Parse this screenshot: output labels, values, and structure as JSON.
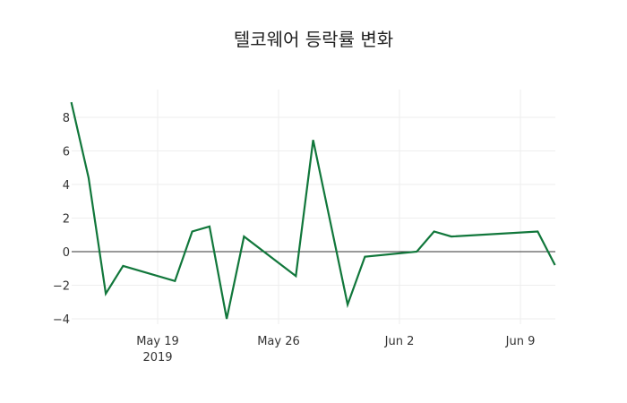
{
  "title": "텔코웨어 등락률 변화",
  "colors": {
    "line": "#11773b",
    "zeroline": "#333333",
    "grid": "#eeeeee"
  },
  "chart_data": {
    "type": "line",
    "title": "텔코웨어 등락률 변화",
    "xlabel": "",
    "ylabel": "",
    "x": [
      "2019-05-14",
      "2019-05-15",
      "2019-05-16",
      "2019-05-17",
      "2019-05-20",
      "2019-05-21",
      "2019-05-22",
      "2019-05-23",
      "2019-05-24",
      "2019-05-27",
      "2019-05-28",
      "2019-05-30",
      "2019-05-31",
      "2019-06-03",
      "2019-06-04",
      "2019-06-05",
      "2019-06-10",
      "2019-06-11"
    ],
    "series": [
      {
        "name": "등락률",
        "values": [
          8.9,
          4.4,
          -2.5,
          -0.85,
          -1.75,
          1.2,
          1.5,
          -4.0,
          0.9,
          -1.45,
          6.65,
          -3.15,
          -0.3,
          0.0,
          1.2,
          0.9,
          1.2,
          -0.8
        ]
      }
    ],
    "x_ticks": [
      {
        "label": "May 19",
        "sublabel": "2019",
        "date": "2019-05-19"
      },
      {
        "label": "May 26",
        "sublabel": "",
        "date": "2019-05-26"
      },
      {
        "label": "Jun 2",
        "sublabel": "",
        "date": "2019-06-02"
      },
      {
        "label": "Jun 9",
        "sublabel": "",
        "date": "2019-06-09"
      }
    ],
    "y_ticks": [
      8,
      6,
      4,
      2,
      0,
      -2,
      -4
    ],
    "y_tick_labels": [
      "8",
      "6",
      "4",
      "2",
      "0",
      "−2",
      "−4"
    ],
    "ylim": [
      -4.3,
      9.6
    ],
    "grid": true,
    "legend": false
  }
}
